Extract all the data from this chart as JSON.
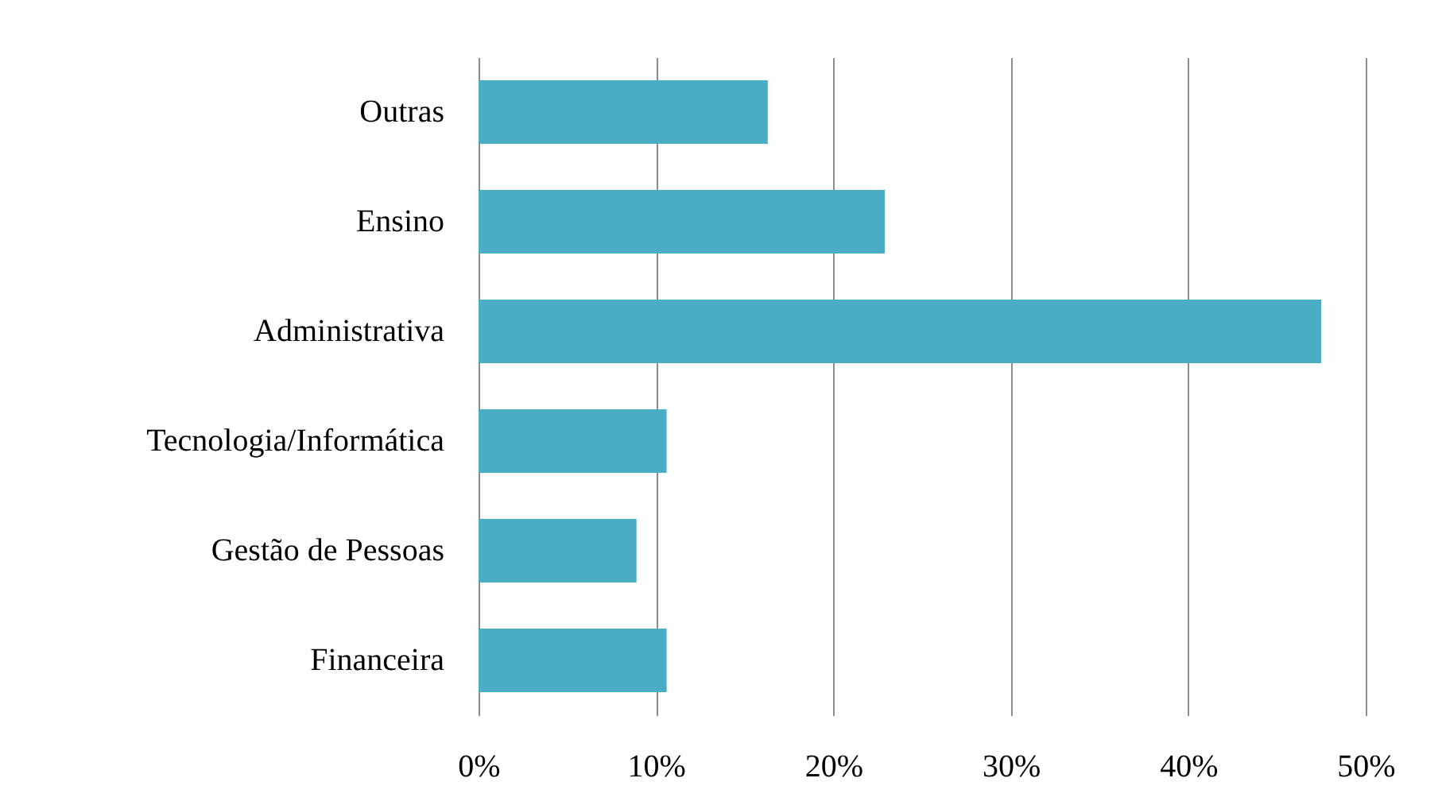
{
  "chart_data": {
    "type": "bar",
    "orientation": "horizontal",
    "categories": [
      "Outras",
      "Ensino",
      "Administrativa",
      "Tecnologia/Informática",
      "Gestão de Pessoas",
      "Financeira"
    ],
    "values": [
      16.3,
      22.9,
      47.5,
      10.6,
      8.9,
      10.6
    ],
    "color": "#4bacc6",
    "xlim": [
      0,
      50
    ],
    "xticks": [
      {
        "value": 0,
        "label": "0%"
      },
      {
        "value": 10,
        "label": "10%"
      },
      {
        "value": 20,
        "label": "20%"
      },
      {
        "value": 30,
        "label": "30%"
      },
      {
        "value": 40,
        "label": "40%"
      },
      {
        "value": 50,
        "label": "50%"
      }
    ],
    "grid": "x"
  }
}
